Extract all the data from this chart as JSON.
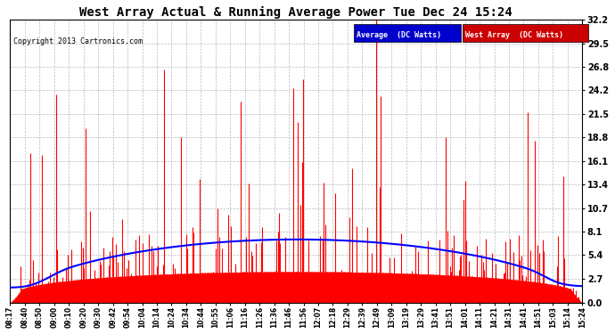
{
  "title": "West Array Actual & Running Average Power Tue Dec 24 15:24",
  "copyright": "Copyright 2013 Cartronics.com",
  "legend_avg": "Average  (DC Watts)",
  "legend_west": "West Array  (DC Watts)",
  "yticks": [
    0.0,
    2.7,
    5.4,
    8.1,
    10.7,
    13.4,
    16.1,
    18.8,
    21.5,
    24.2,
    26.8,
    29.5,
    32.2
  ],
  "ymax": 32.2,
  "ymin": 0.0,
  "bg_color": "#ffffff",
  "plot_bg_color": "#ffffff",
  "grid_color": "#aaaaaa",
  "bar_color": "#ff0000",
  "avg_color": "#0000ff",
  "title_color": "#000000",
  "xtick_labels": [
    "08:17",
    "08:40",
    "08:50",
    "09:00",
    "09:10",
    "09:20",
    "09:30",
    "09:42",
    "09:54",
    "10:04",
    "10:14",
    "10:24",
    "10:34",
    "10:44",
    "10:55",
    "11:06",
    "11:16",
    "11:26",
    "11:36",
    "11:46",
    "11:56",
    "12:07",
    "12:18",
    "12:29",
    "12:39",
    "12:49",
    "13:09",
    "13:19",
    "13:29",
    "13:41",
    "13:51",
    "14:01",
    "14:11",
    "14:21",
    "14:31",
    "14:41",
    "14:51",
    "15:03",
    "15:14",
    "15:24"
  ],
  "n_points": 450,
  "seed": 42,
  "base_avg": 7.2,
  "spike_scale": 25.0,
  "base_fill": 3.5
}
